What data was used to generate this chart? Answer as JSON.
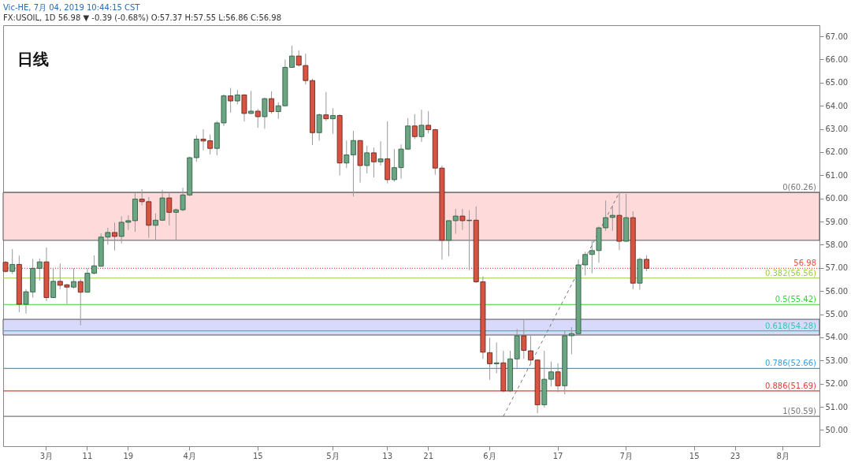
{
  "chart_data": {
    "type": "candlestick",
    "title": "Vic-HE, 7月 04, 2019 10:44:15 CST",
    "subtitle": "FX:USOIL, 1D 56.98 ▼ -0.39 (-0.68%) O:57.37 H:57.55 L:56.86 C:56.98",
    "annotations": [
      "日线"
    ],
    "categories": [
      null,
      null,
      null,
      null,
      null,
      null,
      "3月",
      null,
      null,
      null,
      null,
      null,
      "11",
      null,
      null,
      null,
      null,
      null,
      "19",
      null,
      null,
      null,
      null,
      null,
      null,
      null,
      null,
      "4月",
      null,
      null,
      null,
      null,
      null,
      null,
      null,
      null,
      null,
      "15",
      null,
      null,
      null,
      null,
      null,
      null,
      null,
      null,
      null,
      null,
      "5月",
      null,
      null,
      null,
      null,
      null,
      null,
      null,
      "13",
      null,
      null,
      null,
      null,
      null,
      "21",
      null,
      null,
      null,
      null,
      null,
      null,
      null,
      null,
      "6月",
      null,
      null,
      null,
      null,
      null,
      null,
      null,
      null,
      null,
      "17",
      null,
      null,
      null,
      null,
      null,
      null,
      null,
      null,
      null,
      "7月",
      null,
      null,
      null,
      null,
      null,
      null,
      null,
      null,
      null,
      "15",
      null,
      null,
      null,
      null,
      null,
      "23",
      null,
      null,
      null,
      null,
      null,
      null,
      "8月",
      null,
      null,
      null,
      null,
      null
    ],
    "ohlc": [
      [
        57.24,
        57.3,
        56.8,
        56.85
      ],
      [
        56.85,
        57.81,
        56.74,
        57.15
      ],
      [
        57.15,
        57.53,
        55.09,
        55.43
      ],
      [
        55.43,
        56.08,
        55.03,
        55.97
      ],
      [
        55.96,
        57.39,
        55.72,
        56.98
      ],
      [
        56.98,
        57.41,
        56.45,
        57.26
      ],
      [
        57.26,
        57.88,
        55.57,
        55.72
      ],
      [
        55.72,
        56.99,
        55.7,
        56.42
      ],
      [
        56.42,
        57.19,
        56.08,
        56.25
      ],
      [
        56.27,
        56.31,
        55.45,
        56.17
      ],
      [
        56.17,
        56.99,
        56.11,
        56.41
      ],
      [
        56.41,
        56.51,
        54.52,
        55.95
      ],
      [
        55.95,
        56.99,
        55.93,
        56.77
      ],
      [
        56.77,
        57.54,
        56.72,
        57.09
      ],
      [
        57.07,
        58.49,
        57.05,
        58.33
      ],
      [
        58.33,
        58.73,
        58.0,
        58.53
      ],
      [
        58.53,
        58.95,
        57.75,
        58.36
      ],
      [
        58.36,
        59.23,
        58.05,
        58.97
      ],
      [
        58.97,
        59.27,
        58.64,
        59.04
      ],
      [
        59.04,
        60.26,
        58.56,
        59.97
      ],
      [
        59.97,
        60.4,
        59.7,
        59.86
      ],
      [
        59.86,
        60.06,
        58.3,
        58.84
      ],
      [
        58.84,
        59.35,
        58.21,
        59.06
      ],
      [
        59.06,
        60.37,
        59.04,
        60.02
      ],
      [
        60.02,
        60.26,
        58.83,
        59.4
      ],
      [
        59.4,
        59.56,
        58.22,
        59.51
      ],
      [
        59.51,
        60.46,
        59.44,
        60.15
      ],
      [
        60.15,
        61.8,
        60.1,
        61.76
      ],
      [
        61.76,
        62.73,
        61.59,
        62.56
      ],
      [
        62.56,
        62.99,
        62.08,
        62.48
      ],
      [
        62.49,
        62.76,
        61.9,
        62.16
      ],
      [
        62.16,
        63.35,
        61.86,
        63.26
      ],
      [
        63.26,
        64.49,
        63.13,
        64.43
      ],
      [
        64.43,
        64.77,
        63.7,
        64.21
      ],
      [
        64.21,
        64.68,
        64.06,
        64.47
      ],
      [
        64.47,
        64.5,
        63.32,
        63.67
      ],
      [
        63.67,
        64.64,
        63.65,
        63.77
      ],
      [
        63.77,
        63.87,
        63.05,
        63.53
      ],
      [
        63.53,
        64.35,
        63.01,
        64.31
      ],
      [
        64.31,
        64.63,
        63.66,
        63.75
      ],
      [
        63.75,
        64.15,
        63.44,
        64.0
      ],
      [
        64.0,
        66.0,
        63.98,
        65.66
      ],
      [
        65.66,
        66.6,
        65.64,
        66.15
      ],
      [
        66.15,
        66.4,
        65.69,
        65.76
      ],
      [
        65.74,
        66.25,
        64.92,
        65.09
      ],
      [
        65.09,
        65.17,
        62.3,
        62.84
      ],
      [
        62.84,
        63.67,
        62.49,
        63.61
      ],
      [
        63.61,
        64.6,
        63.35,
        63.44
      ],
      [
        63.44,
        63.9,
        62.79,
        63.58
      ],
      [
        63.58,
        63.64,
        60.99,
        61.53
      ],
      [
        61.53,
        62.5,
        61.31,
        61.88
      ],
      [
        61.88,
        62.92,
        60.08,
        62.5
      ],
      [
        62.5,
        62.52,
        60.68,
        61.42
      ],
      [
        61.42,
        62.27,
        61.08,
        61.97
      ],
      [
        61.97,
        62.2,
        60.91,
        61.58
      ],
      [
        61.58,
        62.47,
        61.42,
        61.71
      ],
      [
        61.71,
        63.33,
        60.65,
        60.81
      ],
      [
        60.81,
        62.13,
        60.72,
        61.33
      ],
      [
        61.33,
        62.33,
        60.85,
        62.13
      ],
      [
        62.13,
        63.47,
        62.1,
        63.13
      ],
      [
        63.13,
        63.64,
        62.56,
        62.67
      ],
      [
        62.67,
        63.83,
        62.44,
        63.16
      ],
      [
        63.16,
        63.77,
        62.81,
        62.97
      ],
      [
        62.97,
        63.01,
        61.02,
        61.31
      ],
      [
        61.31,
        61.42,
        57.36,
        58.19
      ],
      [
        58.19,
        59.06,
        57.5,
        59.04
      ],
      [
        59.04,
        59.55,
        58.47,
        59.24
      ],
      [
        59.24,
        59.55,
        58.64,
        59.04
      ],
      [
        59.04,
        59.49,
        56.9,
        59.06
      ],
      [
        59.06,
        59.66,
        56.35,
        56.4
      ],
      [
        56.4,
        56.63,
        53.07,
        53.36
      ],
      [
        53.34,
        53.98,
        52.17,
        52.86
      ],
      [
        52.86,
        53.78,
        52.45,
        52.9
      ],
      [
        52.9,
        53.42,
        51.62,
        51.69
      ],
      [
        51.69,
        53.42,
        51.63,
        53.07
      ],
      [
        53.07,
        54.36,
        52.68,
        54.07
      ],
      [
        54.07,
        54.78,
        53.07,
        53.44
      ],
      [
        53.42,
        54.07,
        52.83,
        53.02
      ],
      [
        53.02,
        53.04,
        50.72,
        51.09
      ],
      [
        51.09,
        53.42,
        50.97,
        52.19
      ],
      [
        52.19,
        52.96,
        51.88,
        52.51
      ],
      [
        52.51,
        52.88,
        51.63,
        51.91
      ],
      [
        51.91,
        54.29,
        51.54,
        54.07
      ],
      [
        54.07,
        54.44,
        53.27,
        54.16
      ],
      [
        54.16,
        57.36,
        54.14,
        57.13
      ],
      [
        57.13,
        57.7,
        56.68,
        57.58
      ],
      [
        57.58,
        58.22,
        56.77,
        57.75
      ],
      [
        57.75,
        58.79,
        57.22,
        58.73
      ],
      [
        58.73,
        59.91,
        58.6,
        59.17
      ],
      [
        59.18,
        59.7,
        58.6,
        59.27
      ],
      [
        59.27,
        60.26,
        57.77,
        58.15
      ],
      [
        58.15,
        60.2,
        58.13,
        59.17
      ],
      [
        59.17,
        59.44,
        56.08,
        56.34
      ],
      [
        56.34,
        57.45,
        56.06,
        57.37
      ],
      [
        57.37,
        57.55,
        56.86,
        56.98
      ],
      null,
      null,
      null,
      null,
      null,
      null,
      null,
      null,
      null,
      null,
      null,
      null,
      null,
      null,
      null,
      null,
      null,
      null,
      null,
      null,
      null,
      null,
      null,
      null,
      null
    ],
    "series": [
      {
        "type": "line",
        "color": "#787878",
        "line_style": "dashed",
        "values": [
          null,
          null,
          null,
          null,
          null,
          null,
          null,
          null,
          null,
          null,
          null,
          null,
          null,
          null,
          null,
          null,
          null,
          null,
          null,
          null,
          null,
          null,
          null,
          null,
          null,
          null,
          null,
          null,
          null,
          null,
          null,
          null,
          null,
          null,
          null,
          null,
          null,
          null,
          null,
          null,
          null,
          null,
          null,
          null,
          null,
          null,
          null,
          null,
          null,
          null,
          null,
          null,
          null,
          null,
          null,
          null,
          null,
          null,
          null,
          null,
          null,
          null,
          null,
          null,
          null,
          null,
          null,
          null,
          null,
          null,
          null,
          null,
          null,
          50.59,
          null,
          null,
          null,
          null,
          null,
          null,
          null,
          null,
          null,
          null,
          null,
          null,
          null,
          null,
          null,
          null,
          60.26,
          null,
          null,
          null,
          null,
          null,
          null,
          null,
          null,
          null,
          null,
          null,
          null,
          null,
          null,
          null,
          null,
          null,
          null,
          null,
          null,
          null,
          null,
          null,
          null,
          null,
          null,
          null,
          null,
          null
        ]
      }
    ],
    "ylim": [
      49.3,
      67.48
    ],
    "yticks": [
      {
        "value": 50,
        "label": "50.00"
      },
      {
        "value": 51,
        "label": "51.00"
      },
      {
        "value": 52,
        "label": "52.00"
      },
      {
        "value": 53,
        "label": "53.00"
      },
      {
        "value": 54,
        "label": "54.00"
      },
      {
        "value": 55,
        "label": "55.00"
      },
      {
        "value": 56,
        "label": "56.00"
      },
      {
        "value": 57,
        "label": "57.00"
      },
      {
        "value": 58,
        "label": "58.00"
      },
      {
        "value": 59,
        "label": "59.00"
      },
      {
        "value": 60,
        "label": "60.00"
      },
      {
        "value": 61,
        "label": "61.00"
      },
      {
        "value": 62,
        "label": "62.00"
      },
      {
        "value": 63,
        "label": "63.00"
      },
      {
        "value": 64,
        "label": "64.00"
      },
      {
        "value": 65,
        "label": "65.00"
      },
      {
        "value": 66,
        "label": "66.00"
      },
      {
        "value": 67,
        "label": "67.00"
      }
    ],
    "grid": false,
    "bands": [
      {
        "axis": "y",
        "from": 54.1,
        "to": 54.78,
        "color": "#d9d9fb"
      },
      {
        "axis": "y",
        "from": 58.19,
        "to": 60.26,
        "color": "#ffdada"
      }
    ],
    "ref_lines": [
      {
        "axis": "y",
        "value": 56.98,
        "label": "56.98",
        "color": "#e0533d",
        "line_style": "dotted"
      },
      {
        "axis": "y",
        "value": 60.26,
        "label": "0(60.26)",
        "color": "#787878"
      },
      {
        "axis": "y",
        "value": 56.56,
        "label": "0.382(56.56)",
        "color": "#9ccc3c"
      },
      {
        "axis": "y",
        "value": 55.42,
        "label": "0.5(55.42)",
        "color": "#3fcf3f"
      },
      {
        "axis": "y",
        "value": 54.28,
        "label": "0.618(54.28)",
        "color": "#38c5a8"
      },
      {
        "axis": "y",
        "value": 52.66,
        "label": "0.786(52.66)",
        "color": "#3c9ee0"
      },
      {
        "axis": "y",
        "value": 51.69,
        "label": "0.886(51.69)",
        "color": "#d9433a"
      },
      {
        "axis": "y",
        "value": 50.59,
        "label": "1(50.59)",
        "color": "#787878"
      }
    ]
  }
}
